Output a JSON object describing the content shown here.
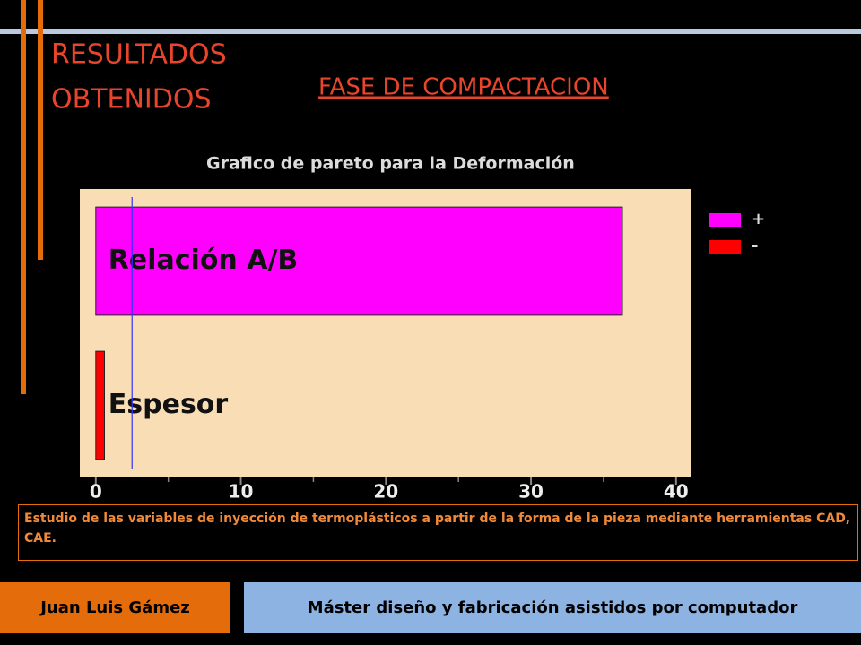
{
  "slide": {
    "title_lines": [
      "RESULTADOS",
      "OBTENIDOS"
    ],
    "subtitle": "FASE DE COMPACTACION",
    "description": "Estudio de las variables de inyección de termoplásticos a partir de la forma de la pieza mediante herramientas CAD, CAE.",
    "footer": {
      "author": "Juan Luis Gámez",
      "course": "Máster diseño y fabricación asistidos por computador"
    }
  },
  "chart_data": {
    "type": "hbar",
    "title": "Grafico de pareto para la Deformación",
    "categories": [
      "Relación A/B",
      "Espesor"
    ],
    "series": [
      {
        "name": "+",
        "color": "#ff00ff",
        "values": [
          36.3,
          null
        ]
      },
      {
        "name": "-",
        "color": "#ff0000",
        "values": [
          null,
          0.6
        ]
      }
    ],
    "reference_line": 2.5,
    "reference_color": "#3333ff",
    "xlim": [
      -1.1,
      41
    ],
    "xticks": [
      0,
      10,
      20,
      30,
      40
    ],
    "minor_xticks": [
      5,
      15,
      25,
      35
    ],
    "background": "#f9deb5",
    "legend": "right"
  }
}
